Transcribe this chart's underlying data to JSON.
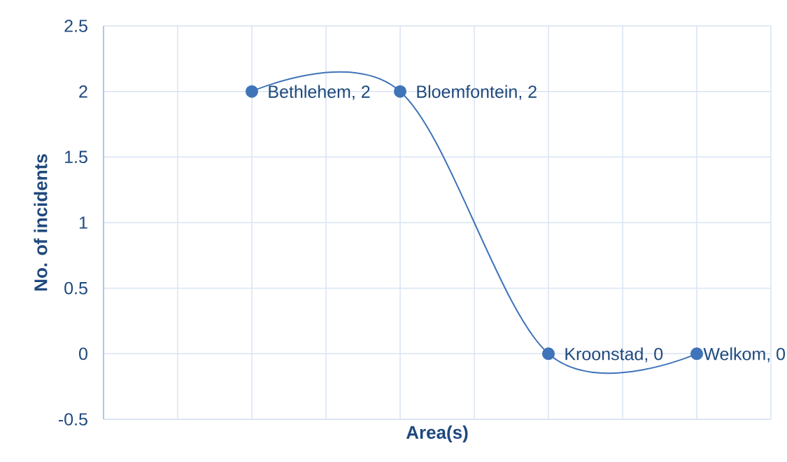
{
  "chart_data": {
    "type": "line",
    "xlabel": "Area(s)",
    "ylabel": "No. of incidents",
    "categories": [
      null,
      null,
      null,
      null
    ],
    "values": [
      2,
      2,
      0,
      0
    ],
    "color": "#3f74b9",
    "value_labels": [
      "Bethlehem, 2",
      "Bloemfontein, 2",
      "Kroonstad, 0",
      "Welkom, 0"
    ],
    "ylim": [
      -0.5,
      2.5
    ],
    "yticks": [
      -0.5,
      0,
      0.5,
      1,
      1.5,
      2,
      2.5
    ],
    "grid": true,
    "marker": "circle",
    "line_style": "solid",
    "tick_labels": "y"
  }
}
